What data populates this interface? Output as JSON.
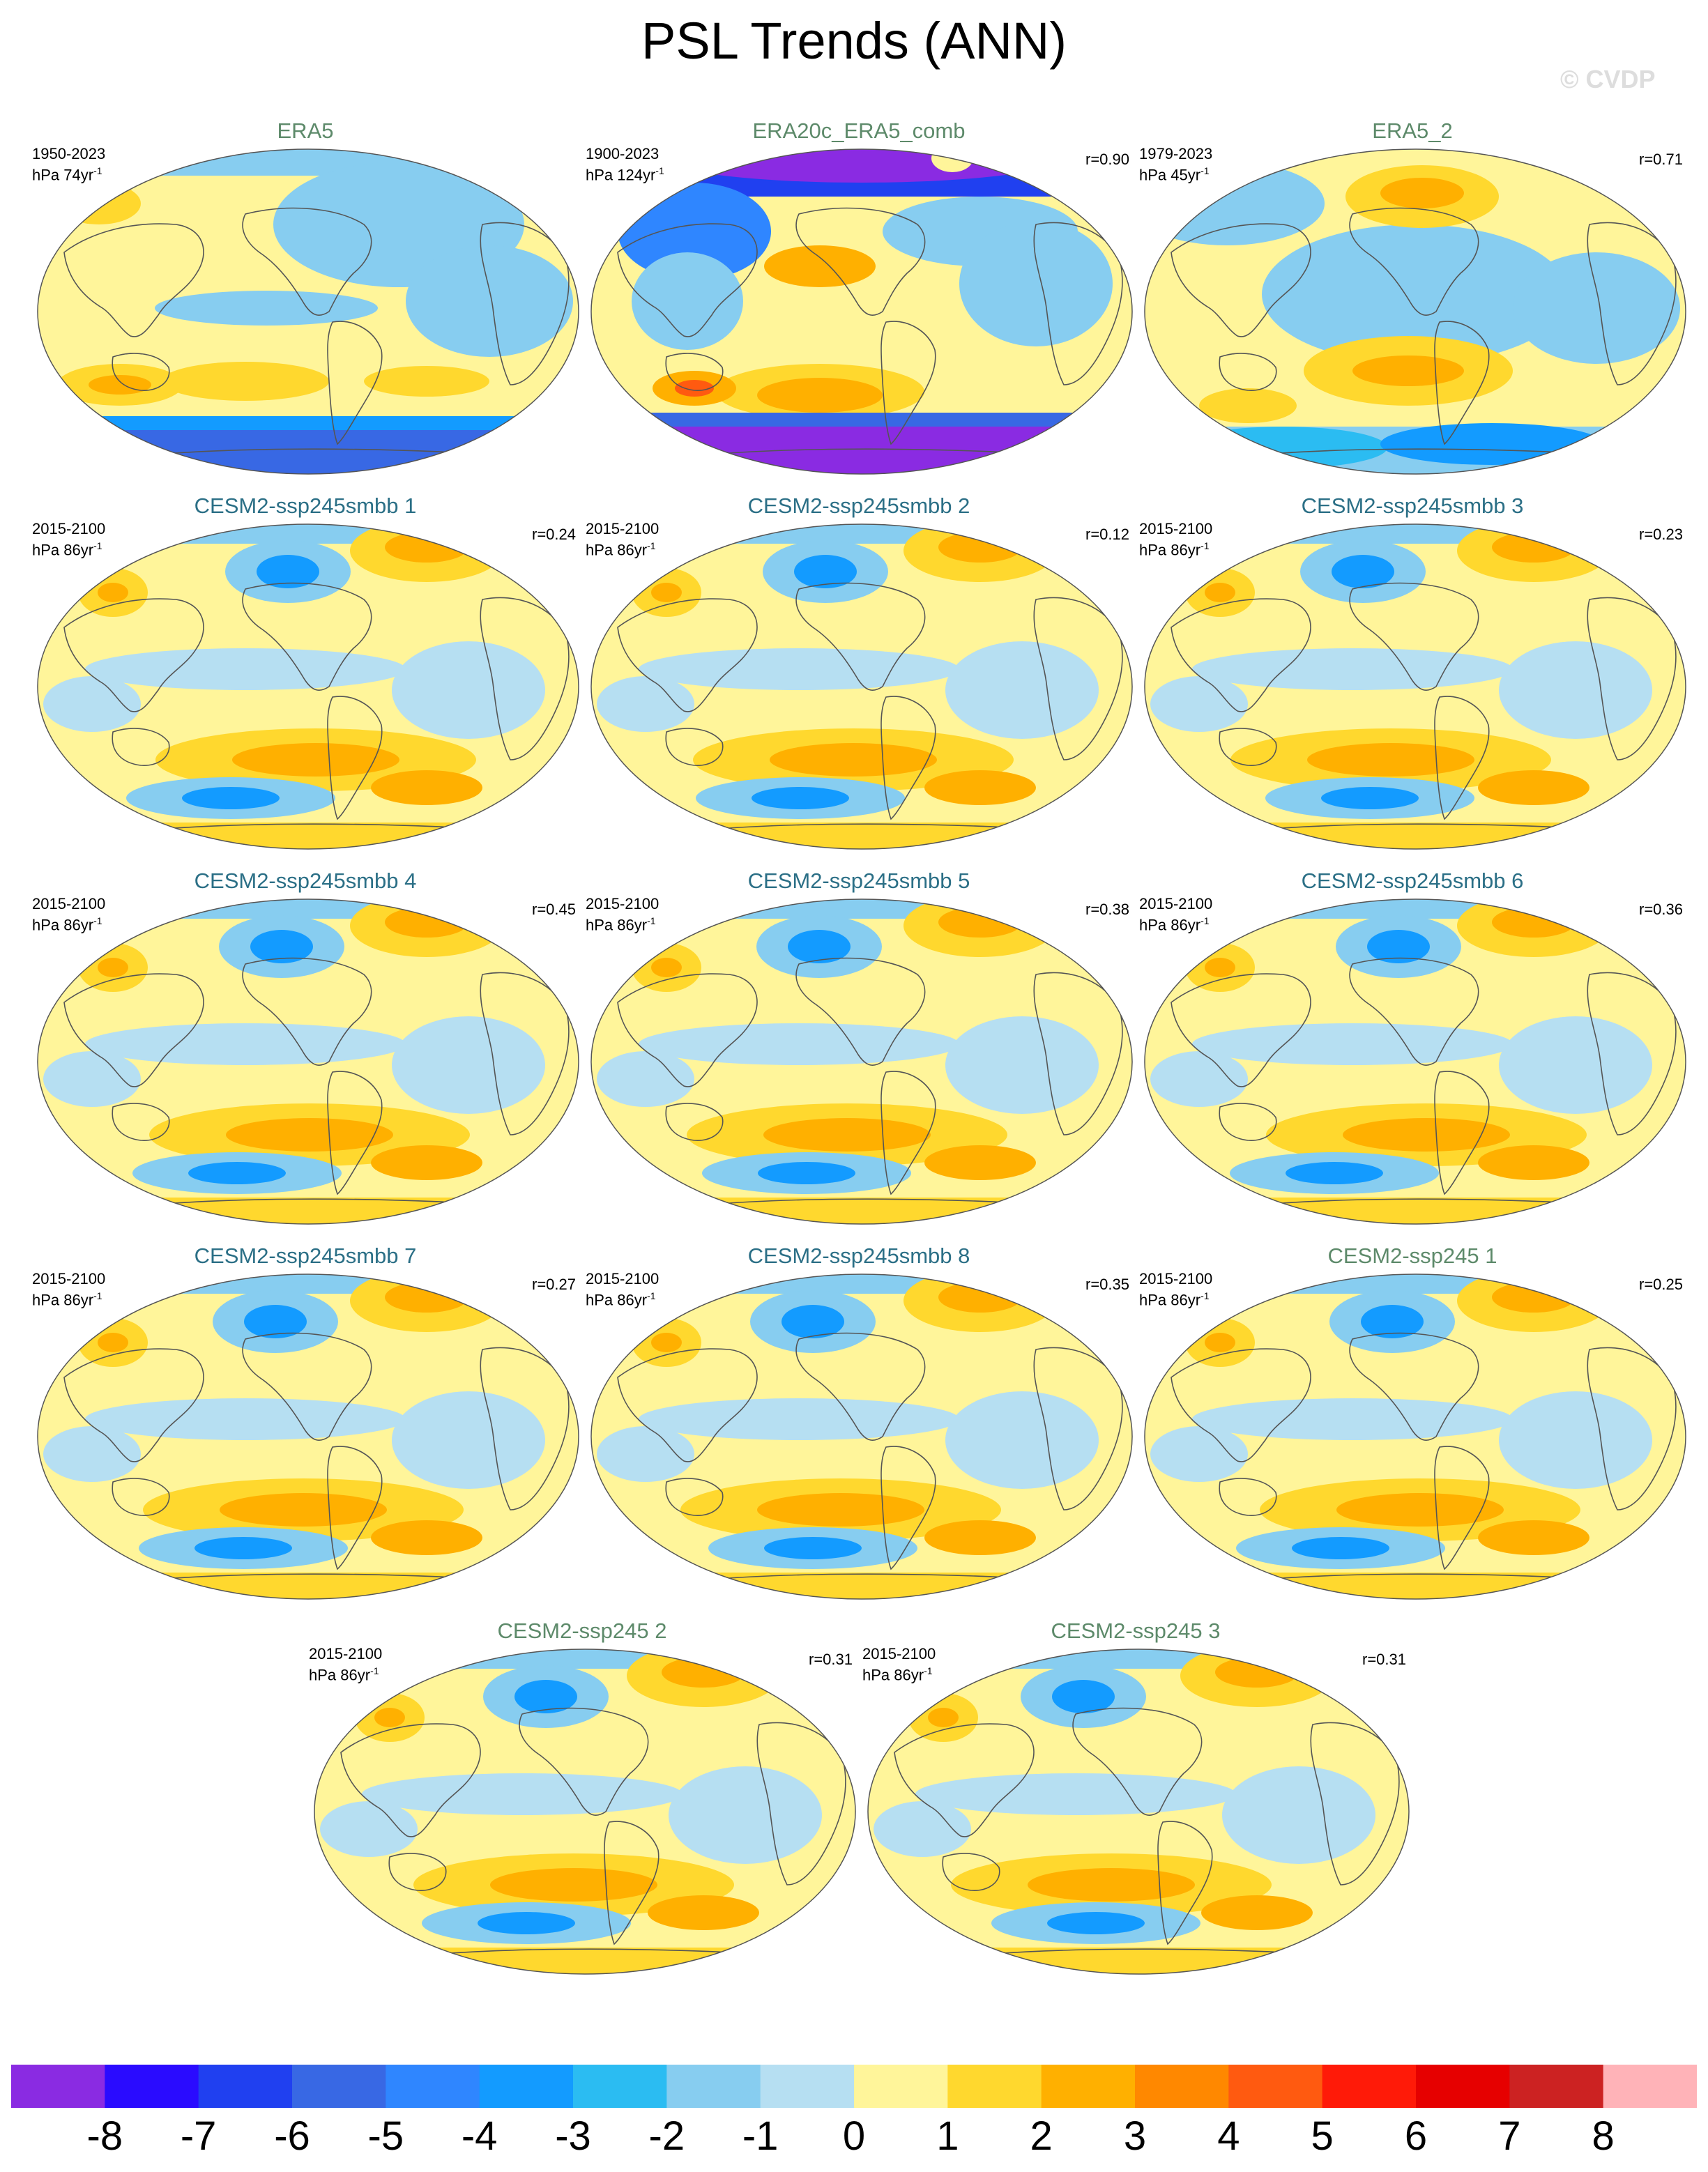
{
  "title": "PSL Trends (ANN)",
  "credit": "© CVDP",
  "panels": [
    {
      "title": "ERA5",
      "period": "1950-2023",
      "units": "hPa 74yr",
      "corr": "",
      "color": "obs",
      "style": "era5"
    },
    {
      "title": "ERA20c_ERA5_comb",
      "period": "1900-2023",
      "units": "hPa 124yr",
      "corr": "r=0.90",
      "color": "obs",
      "style": "era20c"
    },
    {
      "title": "ERA5_2",
      "period": "1979-2023",
      "units": "hPa 45yr",
      "corr": "r=0.71",
      "color": "obs",
      "style": "era5b"
    },
    {
      "title": "CESM2-ssp245smbb 1",
      "period": "2015-2100",
      "units": "hPa 86yr",
      "corr": "r=0.24",
      "color": "smbb",
      "style": "model"
    },
    {
      "title": "CESM2-ssp245smbb 2",
      "period": "2015-2100",
      "units": "hPa 86yr",
      "corr": "r=0.12",
      "color": "smbb",
      "style": "model"
    },
    {
      "title": "CESM2-ssp245smbb 3",
      "period": "2015-2100",
      "units": "hPa 86yr",
      "corr": "r=0.23",
      "color": "smbb",
      "style": "model"
    },
    {
      "title": "CESM2-ssp245smbb 4",
      "period": "2015-2100",
      "units": "hPa 86yr",
      "corr": "r=0.45",
      "color": "smbb",
      "style": "model"
    },
    {
      "title": "CESM2-ssp245smbb 5",
      "period": "2015-2100",
      "units": "hPa 86yr",
      "corr": "r=0.38",
      "color": "smbb",
      "style": "model"
    },
    {
      "title": "CESM2-ssp245smbb 6",
      "period": "2015-2100",
      "units": "hPa 86yr",
      "corr": "r=0.36",
      "color": "smbb",
      "style": "model"
    },
    {
      "title": "CESM2-ssp245smbb 7",
      "period": "2015-2100",
      "units": "hPa 86yr",
      "corr": "r=0.27",
      "color": "smbb",
      "style": "model"
    },
    {
      "title": "CESM2-ssp245smbb 8",
      "period": "2015-2100",
      "units": "hPa 86yr",
      "corr": "r=0.35",
      "color": "smbb",
      "style": "model"
    },
    {
      "title": "CESM2-ssp245 1",
      "period": "2015-2100",
      "units": "hPa 86yr",
      "corr": "r=0.25",
      "color": "obs",
      "style": "model"
    },
    {
      "title": "CESM2-ssp245 2",
      "period": "2015-2100",
      "units": "hPa 86yr",
      "corr": "r=0.31",
      "color": "obs",
      "style": "model"
    },
    {
      "title": "CESM2-ssp245 3",
      "period": "2015-2100",
      "units": "hPa 86yr",
      "corr": "r=0.31",
      "color": "obs",
      "style": "model"
    }
  ],
  "colorbar": {
    "labels": [
      "-8",
      "-7",
      "-6",
      "-5",
      "-4",
      "-3",
      "-2",
      "-1",
      "0",
      "1",
      "2",
      "3",
      "4",
      "5",
      "6",
      "7",
      "8"
    ],
    "colors": [
      "#8a2be2",
      "#2a0bff",
      "#2040f0",
      "#3868e4",
      "#2f86ff",
      "#139bff",
      "#2bbcf2",
      "#87cdf0",
      "#b6dff2",
      "#fff59a",
      "#ffd82e",
      "#ffb000",
      "#ff8800",
      "#ff5a10",
      "#ff1a08",
      "#e60000",
      "#cc2222",
      "#ffb3b8"
    ]
  }
}
